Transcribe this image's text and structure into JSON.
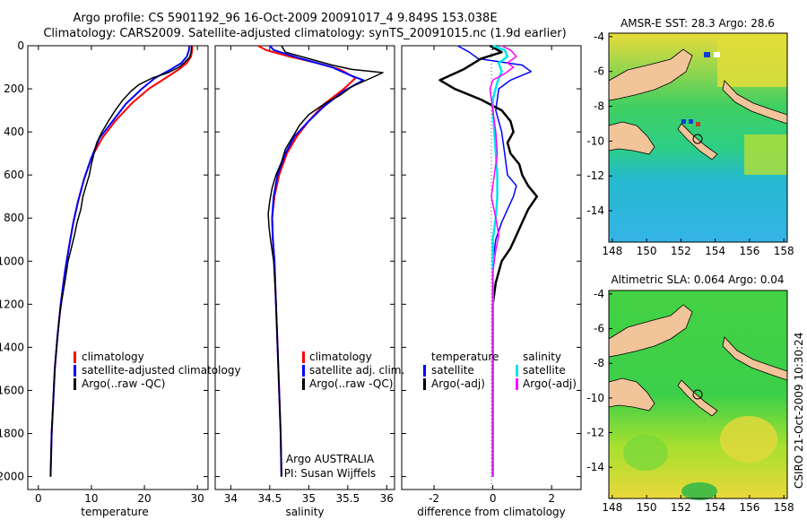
{
  "title": {
    "line1": "Argo profile: CS 5901192_96 16-Oct-2009 20091017_4 9.849S 153.038E",
    "line2": "Climatology: CARS2009. Satellite-adjusted climatology: synTS_20091015.nc (1.9d earlier)"
  },
  "credit": {
    "agency": "Argo AUSTRALIA",
    "pi": "PI: Susan Wijffels",
    "stamp": "CSIRO 21-Oct-2009 10:30:24"
  },
  "colors": {
    "climatology": "#ff0000",
    "satellite": "#0000ff",
    "argo": "#000000",
    "salinity_sat": "#00e5ee",
    "salinity_argo": "#ff00ff"
  },
  "chart_data": [
    {
      "id": "temperature",
      "type": "line",
      "xlabel": "temperature",
      "xlim": [
        -2,
        32
      ],
      "xticks": [
        0,
        10,
        20,
        30
      ],
      "ylim": [
        2060,
        0
      ],
      "yticks": [
        0,
        200,
        400,
        600,
        800,
        1000,
        1200,
        1400,
        1600,
        1800,
        2000
      ],
      "legend": [
        {
          "label": "climatology",
          "color": "#ff0000"
        },
        {
          "label": "satellite-adjusted climatology",
          "color": "#0000ff"
        },
        {
          "label": "Argo(..raw -QC)",
          "color": "#000000"
        }
      ],
      "series": [
        {
          "name": "climatology",
          "color": "#ff0000",
          "width": 2,
          "points": [
            [
              29.0,
              0
            ],
            [
              29.0,
              20
            ],
            [
              28.8,
              50
            ],
            [
              28.0,
              80
            ],
            [
              26.5,
              110
            ],
            [
              24.0,
              150
            ],
            [
              20.8,
              200
            ],
            [
              17.5,
              270
            ],
            [
              14.5,
              350
            ],
            [
              12.0,
              430
            ],
            [
              10.0,
              520
            ],
            [
              8.6,
              620
            ],
            [
              7.5,
              720
            ],
            [
              6.6,
              820
            ],
            [
              5.8,
              930
            ],
            [
              5.0,
              1050
            ],
            [
              4.2,
              1200
            ],
            [
              3.6,
              1350
            ],
            [
              3.1,
              1500
            ],
            [
              2.8,
              1650
            ],
            [
              2.5,
              1800
            ],
            [
              2.3,
              2000
            ]
          ]
        },
        {
          "name": "satellite",
          "color": "#0000ff",
          "width": 2,
          "points": [
            [
              28.5,
              0
            ],
            [
              28.4,
              20
            ],
            [
              28.0,
              50
            ],
            [
              27.0,
              80
            ],
            [
              25.0,
              110
            ],
            [
              22.0,
              150
            ],
            [
              19.5,
              200
            ],
            [
              16.5,
              270
            ],
            [
              14.0,
              350
            ],
            [
              11.5,
              430
            ],
            [
              10.0,
              520
            ],
            [
              8.6,
              620
            ],
            [
              7.5,
              720
            ],
            [
              6.6,
              820
            ],
            [
              5.8,
              930
            ],
            [
              5.0,
              1050
            ],
            [
              4.2,
              1200
            ],
            [
              3.6,
              1350
            ],
            [
              3.1,
              1500
            ],
            [
              2.8,
              1650
            ],
            [
              2.5,
              1800
            ],
            [
              2.3,
              2000
            ]
          ]
        },
        {
          "name": "Argo",
          "color": "#000000",
          "width": 1.5,
          "points": [
            [
              28.9,
              0
            ],
            [
              28.8,
              30
            ],
            [
              28.5,
              55
            ],
            [
              27.5,
              80
            ],
            [
              26.5,
              100
            ],
            [
              24.5,
              125
            ],
            [
              21.5,
              150
            ],
            [
              19.0,
              180
            ],
            [
              17.5,
              210
            ],
            [
              16.0,
              250
            ],
            [
              14.5,
              300
            ],
            [
              13.2,
              350
            ],
            [
              12.0,
              400
            ],
            [
              11.0,
              450
            ],
            [
              10.5,
              500
            ],
            [
              10.0,
              550
            ],
            [
              9.6,
              600
            ],
            [
              9.0,
              650
            ],
            [
              8.4,
              700
            ],
            [
              8.0,
              760
            ],
            [
              7.3,
              820
            ],
            [
              6.8,
              880
            ],
            [
              6.2,
              940
            ],
            [
              5.6,
              1000
            ],
            [
              5.1,
              1080
            ],
            [
              4.5,
              1170
            ],
            [
              3.9,
              1270
            ],
            [
              3.5,
              1380
            ],
            [
              3.1,
              1500
            ],
            [
              2.8,
              1640
            ],
            [
              2.5,
              1800
            ],
            [
              2.3,
              2000
            ]
          ]
        }
      ]
    },
    {
      "id": "salinity",
      "type": "line",
      "xlabel": "salinity",
      "xlim": [
        33.8,
        36.1
      ],
      "xticks": [
        34,
        34.5,
        35,
        35.5,
        36
      ],
      "xtick_labels": [
        "34",
        "34.5",
        "35",
        "35.5",
        "36"
      ],
      "ylim": [
        2060,
        0
      ],
      "legend": [
        {
          "label": "climatology",
          "color": "#ff0000"
        },
        {
          "label": "satellite adj. clim.",
          "color": "#0000ff"
        },
        {
          "label": "Argo(..raw -QC)",
          "color": "#000000"
        }
      ],
      "series": [
        {
          "name": "climatology",
          "color": "#ff0000",
          "width": 2,
          "points": [
            [
              34.35,
              0
            ],
            [
              34.45,
              20
            ],
            [
              34.75,
              50
            ],
            [
              35.1,
              80
            ],
            [
              35.4,
              110
            ],
            [
              35.6,
              150
            ],
            [
              35.45,
              200
            ],
            [
              35.2,
              270
            ],
            [
              35.0,
              350
            ],
            [
              34.85,
              420
            ],
            [
              34.72,
              500
            ],
            [
              34.62,
              600
            ],
            [
              34.56,
              700
            ],
            [
              34.53,
              800
            ],
            [
              34.54,
              900
            ],
            [
              34.56,
              1000
            ],
            [
              34.58,
              1200
            ],
            [
              34.6,
              1400
            ],
            [
              34.62,
              1600
            ],
            [
              34.64,
              1800
            ],
            [
              34.65,
              2000
            ]
          ]
        },
        {
          "name": "satellite",
          "color": "#0000ff",
          "width": 2,
          "points": [
            [
              34.5,
              0
            ],
            [
              34.55,
              20
            ],
            [
              34.9,
              60
            ],
            [
              35.3,
              100
            ],
            [
              35.55,
              140
            ],
            [
              35.7,
              160
            ],
            [
              35.45,
              210
            ],
            [
              35.2,
              280
            ],
            [
              35.0,
              350
            ],
            [
              34.82,
              420
            ],
            [
              34.7,
              500
            ],
            [
              34.6,
              600
            ],
            [
              34.55,
              700
            ],
            [
              34.53,
              800
            ],
            [
              34.54,
              900
            ],
            [
              34.56,
              1000
            ],
            [
              34.58,
              1200
            ],
            [
              34.6,
              1400
            ],
            [
              34.62,
              1600
            ],
            [
              34.64,
              1800
            ],
            [
              34.65,
              2000
            ]
          ]
        },
        {
          "name": "Argo",
          "color": "#000000",
          "width": 1.5,
          "points": [
            [
              34.65,
              0
            ],
            [
              34.7,
              30
            ],
            [
              35.0,
              60
            ],
            [
              35.3,
              90
            ],
            [
              35.55,
              110
            ],
            [
              35.95,
              125
            ],
            [
              35.8,
              150
            ],
            [
              35.55,
              190
            ],
            [
              35.4,
              230
            ],
            [
              35.2,
              270
            ],
            [
              35.0,
              320
            ],
            [
              34.88,
              370
            ],
            [
              34.8,
              420
            ],
            [
              34.7,
              480
            ],
            [
              34.65,
              540
            ],
            [
              34.58,
              600
            ],
            [
              34.53,
              660
            ],
            [
              34.5,
              720
            ],
            [
              34.48,
              780
            ],
            [
              34.49,
              840
            ],
            [
              34.51,
              900
            ],
            [
              34.55,
              1000
            ],
            [
              34.58,
              1200
            ],
            [
              34.6,
              1400
            ],
            [
              34.62,
              1600
            ],
            [
              34.64,
              1800
            ],
            [
              34.65,
              2000
            ]
          ]
        }
      ]
    },
    {
      "id": "difference",
      "type": "line",
      "xlabel": "difference from climatology",
      "xlim": [
        -3.1,
        3.0
      ],
      "xticks": [
        -2,
        0,
        2
      ],
      "ylim": [
        2060,
        0
      ],
      "legend_left_header": "temperature",
      "legend_right_header": "salinity",
      "legend_left": [
        {
          "label": "satellite",
          "color": "#0000ff"
        },
        {
          "label": "Argo(-adj)",
          "color": "#000000"
        }
      ],
      "legend_right": [
        {
          "label": "satellite",
          "color": "#00e5ee"
        },
        {
          "label": "Argo(-adj)",
          "color": "#ff00ff"
        }
      ],
      "series": [
        {
          "name": "temp satellite",
          "color": "#0000ff",
          "width": 1.5,
          "points": [
            [
              -1.2,
              0
            ],
            [
              -0.8,
              30
            ],
            [
              -0.5,
              60
            ],
            [
              1.0,
              90
            ],
            [
              1.3,
              120
            ],
            [
              0.6,
              160
            ],
            [
              0.2,
              200
            ],
            [
              0.1,
              300
            ],
            [
              0.3,
              400
            ],
            [
              0.4,
              500
            ],
            [
              0.5,
              600
            ],
            [
              0.8,
              650
            ],
            [
              0.7,
              700
            ],
            [
              0.5,
              760
            ],
            [
              0.3,
              820
            ],
            [
              0.1,
              900
            ],
            [
              0.0,
              1000
            ],
            [
              0.0,
              2000
            ]
          ]
        },
        {
          "name": "temp Argo",
          "color": "#000000",
          "width": 2.5,
          "points": [
            [
              -0.1,
              0
            ],
            [
              0.3,
              30
            ],
            [
              -0.4,
              60
            ],
            [
              -1.0,
              110
            ],
            [
              -1.8,
              160
            ],
            [
              -1.3,
              200
            ],
            [
              -0.4,
              250
            ],
            [
              0.3,
              300
            ],
            [
              0.6,
              350
            ],
            [
              0.7,
              400
            ],
            [
              0.5,
              450
            ],
            [
              0.6,
              500
            ],
            [
              0.9,
              550
            ],
            [
              1.0,
              600
            ],
            [
              1.2,
              650
            ],
            [
              1.5,
              700
            ],
            [
              1.2,
              760
            ],
            [
              1.0,
              820
            ],
            [
              0.8,
              880
            ],
            [
              0.6,
              940
            ],
            [
              0.3,
              1000
            ],
            [
              0.1,
              1100
            ],
            [
              0.0,
              1200
            ],
            [
              0.0,
              2000
            ]
          ]
        },
        {
          "name": "sal satellite",
          "color": "#00e5ee",
          "width": 2.5,
          "points": [
            [
              0.0,
              0
            ],
            [
              0.4,
              20
            ],
            [
              0.5,
              50
            ],
            [
              0.2,
              80
            ],
            [
              0.3,
              120
            ],
            [
              0.15,
              170
            ],
            [
              0.0,
              250
            ],
            [
              0.0,
              300
            ],
            [
              0.05,
              400
            ],
            [
              0.1,
              500
            ],
            [
              0.15,
              600
            ],
            [
              0.15,
              700
            ],
            [
              0.1,
              800
            ],
            [
              0.0,
              900
            ],
            [
              0.0,
              1200
            ],
            [
              0.0,
              2000
            ]
          ]
        },
        {
          "name": "sal Argo",
          "color": "#ff00ff",
          "width": 1.5,
          "points": [
            [
              0.3,
              0
            ],
            [
              0.6,
              20
            ],
            [
              0.8,
              50
            ],
            [
              0.5,
              80
            ],
            [
              0.7,
              100
            ],
            [
              0.4,
              130
            ],
            [
              0.0,
              160
            ],
            [
              -0.1,
              200
            ],
            [
              0.0,
              300
            ],
            [
              0.1,
              400
            ],
            [
              0.15,
              500
            ],
            [
              0.05,
              600
            ],
            [
              -0.05,
              700
            ],
            [
              0.1,
              800
            ],
            [
              0.2,
              880
            ],
            [
              0.1,
              950
            ],
            [
              0.0,
              1050
            ],
            [
              0.0,
              1200
            ],
            [
              0.0,
              2000
            ]
          ]
        }
      ]
    },
    {
      "id": "sst-map",
      "type": "heatmap",
      "title": "AMSR-E SST: 28.3 Argo: 28.6",
      "xlim": [
        147.8,
        158.2
      ],
      "ylim": [
        -15.8,
        -3.8
      ],
      "xticks": [
        148,
        150,
        152,
        154,
        156,
        158
      ],
      "yticks": [
        -4,
        -6,
        -8,
        -10,
        -12,
        -14
      ],
      "marker": [
        153.038,
        -9.849
      ]
    },
    {
      "id": "sla-map",
      "type": "heatmap",
      "title": "Altimetric SLA: 0.064 Argo: 0.04",
      "xlim": [
        147.8,
        158.2
      ],
      "ylim": [
        -15.8,
        -3.8
      ],
      "xticks": [
        148,
        150,
        152,
        154,
        156,
        158
      ],
      "yticks": [
        -4,
        -6,
        -8,
        -10,
        -12,
        -14
      ],
      "marker": [
        153.038,
        -9.849
      ]
    }
  ]
}
